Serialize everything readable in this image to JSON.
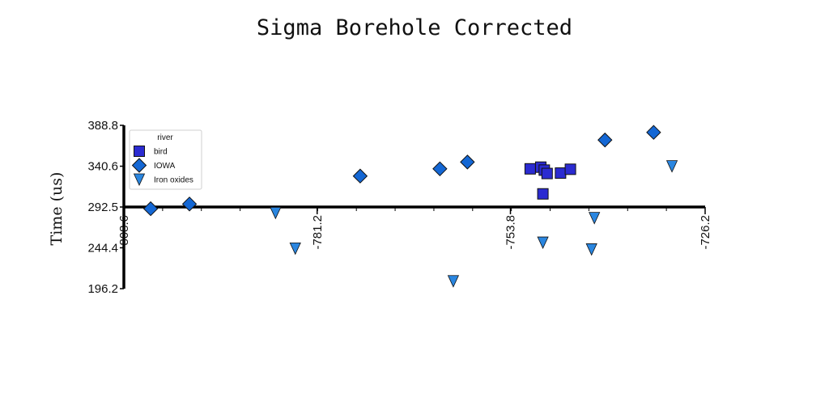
{
  "chart_data": {
    "type": "scatter",
    "title": "Sigma Borehole Corrected",
    "xlabel": "",
    "ylabel": "Time (us)",
    "xlim": [
      -808.6,
      -726.2
    ],
    "ylim": [
      196.2,
      388.8
    ],
    "x_ticks": [
      "-808.6",
      "-781.2",
      "-753.8",
      "-726.2"
    ],
    "y_ticks": [
      "196.2",
      "244.4",
      "292.5",
      "340.6",
      "388.8"
    ],
    "legend": {
      "title": "river",
      "placement": "top-left"
    },
    "grid": false,
    "series": [
      {
        "name": "bird",
        "marker": "square",
        "color": "#2b2bd1",
        "points": [
          {
            "x": -751.0,
            "y": 337.5
          },
          {
            "x": -749.5,
            "y": 339.5
          },
          {
            "x": -749.0,
            "y": 336.0
          },
          {
            "x": -748.6,
            "y": 332.0
          },
          {
            "x": -746.7,
            "y": 332.5
          },
          {
            "x": -745.3,
            "y": 337.0
          },
          {
            "x": -749.2,
            "y": 308.0
          }
        ]
      },
      {
        "name": "IOWA",
        "marker": "diamond",
        "color": "#1467d4",
        "points": [
          {
            "x": -804.8,
            "y": 290.5
          },
          {
            "x": -799.3,
            "y": 296.0
          },
          {
            "x": -775.1,
            "y": 329.0
          },
          {
            "x": -763.8,
            "y": 337.5
          },
          {
            "x": -759.9,
            "y": 345.5
          },
          {
            "x": -740.4,
            "y": 371.5
          },
          {
            "x": -733.5,
            "y": 380.5
          }
        ]
      },
      {
        "name": "Iron oxides",
        "marker": "triangle-down",
        "color": "#2a86e0",
        "points": [
          {
            "x": -787.1,
            "y": 285.5
          },
          {
            "x": -784.3,
            "y": 243.5
          },
          {
            "x": -761.9,
            "y": 205.0
          },
          {
            "x": -749.2,
            "y": 250.5
          },
          {
            "x": -741.9,
            "y": 279.5
          },
          {
            "x": -742.3,
            "y": 242.5
          },
          {
            "x": -730.9,
            "y": 340.5
          }
        ]
      }
    ]
  }
}
